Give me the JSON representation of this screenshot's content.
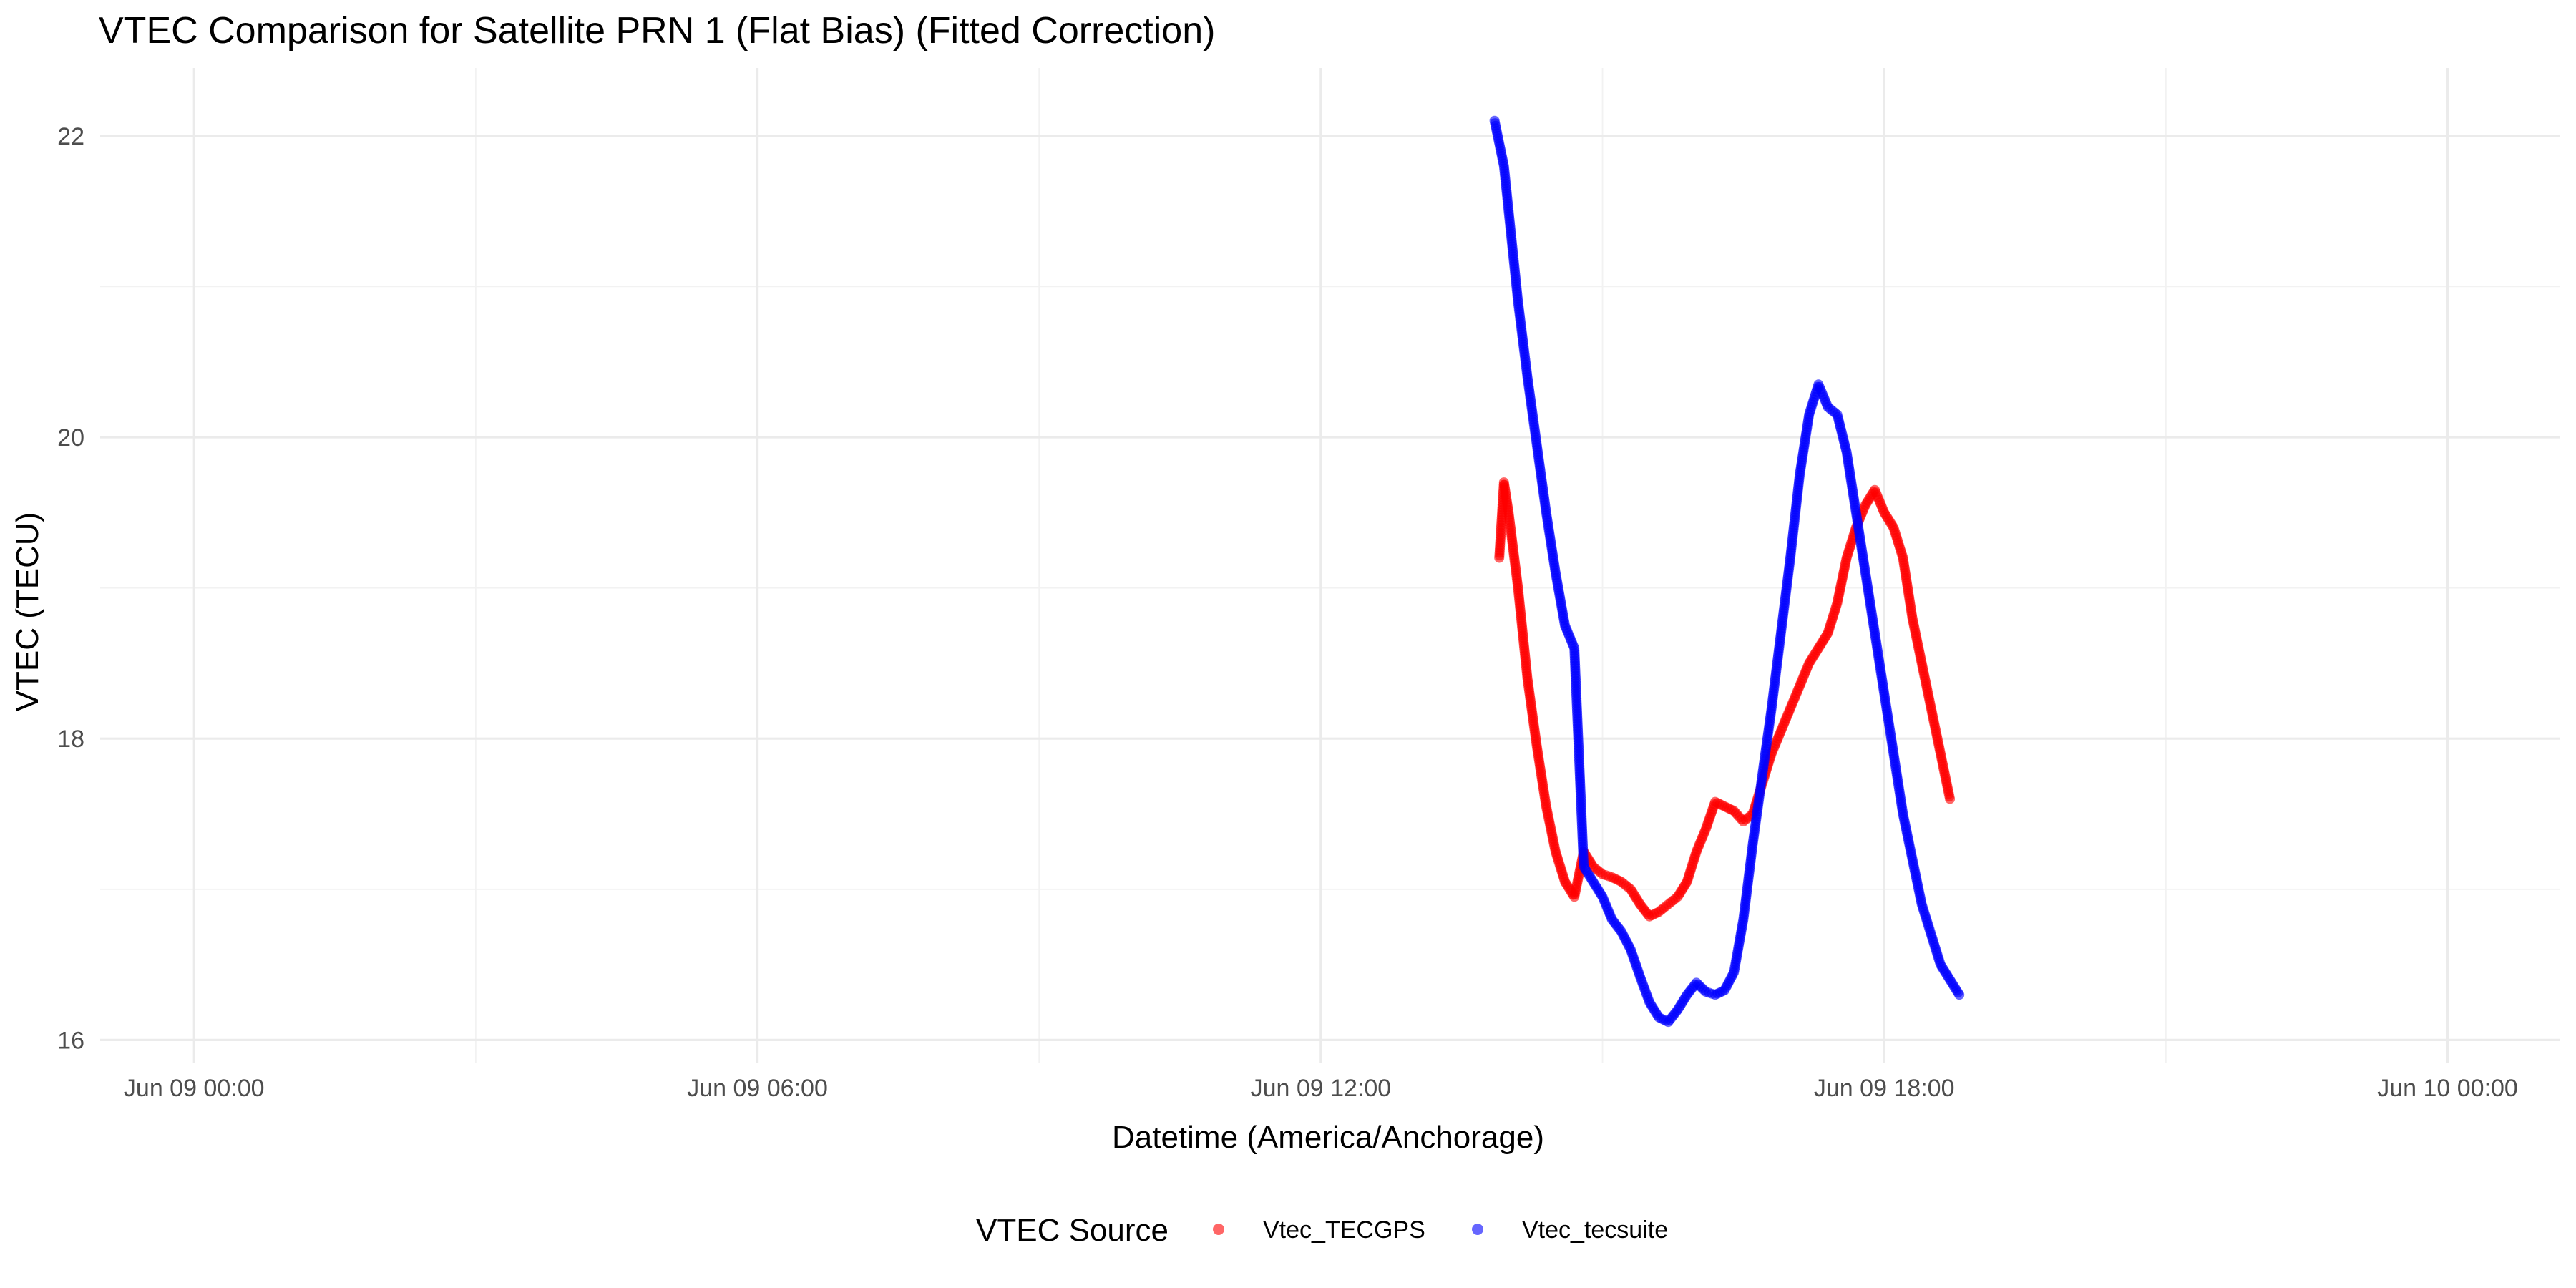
{
  "chart_data": {
    "type": "scatter",
    "title": "VTEC Comparison for Satellite PRN 1 (Flat Bias)   (Fitted Correction)",
    "xlabel": "Datetime (America/Anchorage)",
    "ylabel": "VTEC (TECU)",
    "x_unit": "hours since Jun 09 00:00",
    "xlim": [
      -1.0,
      25.2
    ],
    "ylim": [
      15.85,
      22.45
    ],
    "x_ticks": [
      0,
      6,
      12,
      18,
      24
    ],
    "x_tick_labels": [
      "Jun 09 00:00",
      "Jun 09 06:00",
      "Jun 09 12:00",
      "Jun 09 18:00",
      "Jun 10 00:00"
    ],
    "y_ticks": [
      16,
      18,
      20,
      22
    ],
    "y_tick_labels": [
      "16",
      "18",
      "20",
      "22"
    ],
    "grid": true,
    "legend": {
      "title": "VTEC Source",
      "position": "bottom"
    },
    "series": [
      {
        "name": "Vtec_TECGPS",
        "color": "#ff0000",
        "x": [
          13.9,
          13.95,
          14.0,
          14.05,
          14.1,
          14.15,
          14.2,
          14.3,
          14.4,
          14.5,
          14.6,
          14.7,
          14.8,
          14.9,
          15.0,
          15.1,
          15.2,
          15.3,
          15.4,
          15.5,
          15.6,
          15.7,
          15.8,
          15.9,
          16.0,
          16.1,
          16.2,
          16.3,
          16.4,
          16.5,
          16.6,
          16.7,
          16.8,
          16.9,
          17.0,
          17.1,
          17.2,
          17.3,
          17.4,
          17.5,
          17.6,
          17.7,
          17.8,
          17.9,
          18.0,
          18.1,
          18.2,
          18.3,
          18.4,
          18.5,
          18.6,
          18.7
        ],
        "y": [
          19.2,
          19.7,
          19.5,
          19.25,
          19.0,
          18.7,
          18.4,
          17.95,
          17.55,
          17.25,
          17.05,
          16.95,
          17.25,
          17.15,
          17.1,
          17.08,
          17.05,
          17.0,
          16.9,
          16.82,
          16.85,
          16.9,
          16.95,
          17.05,
          17.25,
          17.4,
          17.58,
          17.55,
          17.52,
          17.45,
          17.5,
          17.7,
          17.9,
          18.05,
          18.2,
          18.35,
          18.5,
          18.6,
          18.7,
          18.9,
          19.2,
          19.4,
          19.55,
          19.65,
          19.5,
          19.4,
          19.2,
          18.8,
          18.5,
          18.2,
          17.9,
          17.6
        ]
      },
      {
        "name": "Vtec_tecsuite",
        "color": "#0000ff",
        "x": [
          13.85,
          13.95,
          14.0,
          14.05,
          14.1,
          14.2,
          14.3,
          14.4,
          14.5,
          14.6,
          14.7,
          14.8,
          14.9,
          15.0,
          15.1,
          15.2,
          15.3,
          15.4,
          15.5,
          15.6,
          15.7,
          15.8,
          15.9,
          16.0,
          16.1,
          16.2,
          16.3,
          16.4,
          16.5,
          16.6,
          16.7,
          16.8,
          16.9,
          17.0,
          17.1,
          17.2,
          17.3,
          17.4,
          17.5,
          17.6,
          17.7,
          17.8,
          17.9,
          18.0,
          18.1,
          18.2,
          18.3,
          18.4,
          18.5,
          18.6,
          18.7,
          18.8
        ],
        "y": [
          22.1,
          21.8,
          21.5,
          21.2,
          20.9,
          20.4,
          19.95,
          19.5,
          19.1,
          18.75,
          18.6,
          17.15,
          17.05,
          16.95,
          16.8,
          16.72,
          16.6,
          16.42,
          16.25,
          16.15,
          16.12,
          16.2,
          16.3,
          16.38,
          16.32,
          16.3,
          16.33,
          16.45,
          16.8,
          17.3,
          17.75,
          18.2,
          18.7,
          19.2,
          19.75,
          20.15,
          20.35,
          20.2,
          20.15,
          19.9,
          19.5,
          19.1,
          18.7,
          18.3,
          17.9,
          17.5,
          17.2,
          16.9,
          16.7,
          16.5,
          16.4,
          16.3
        ]
      }
    ]
  }
}
